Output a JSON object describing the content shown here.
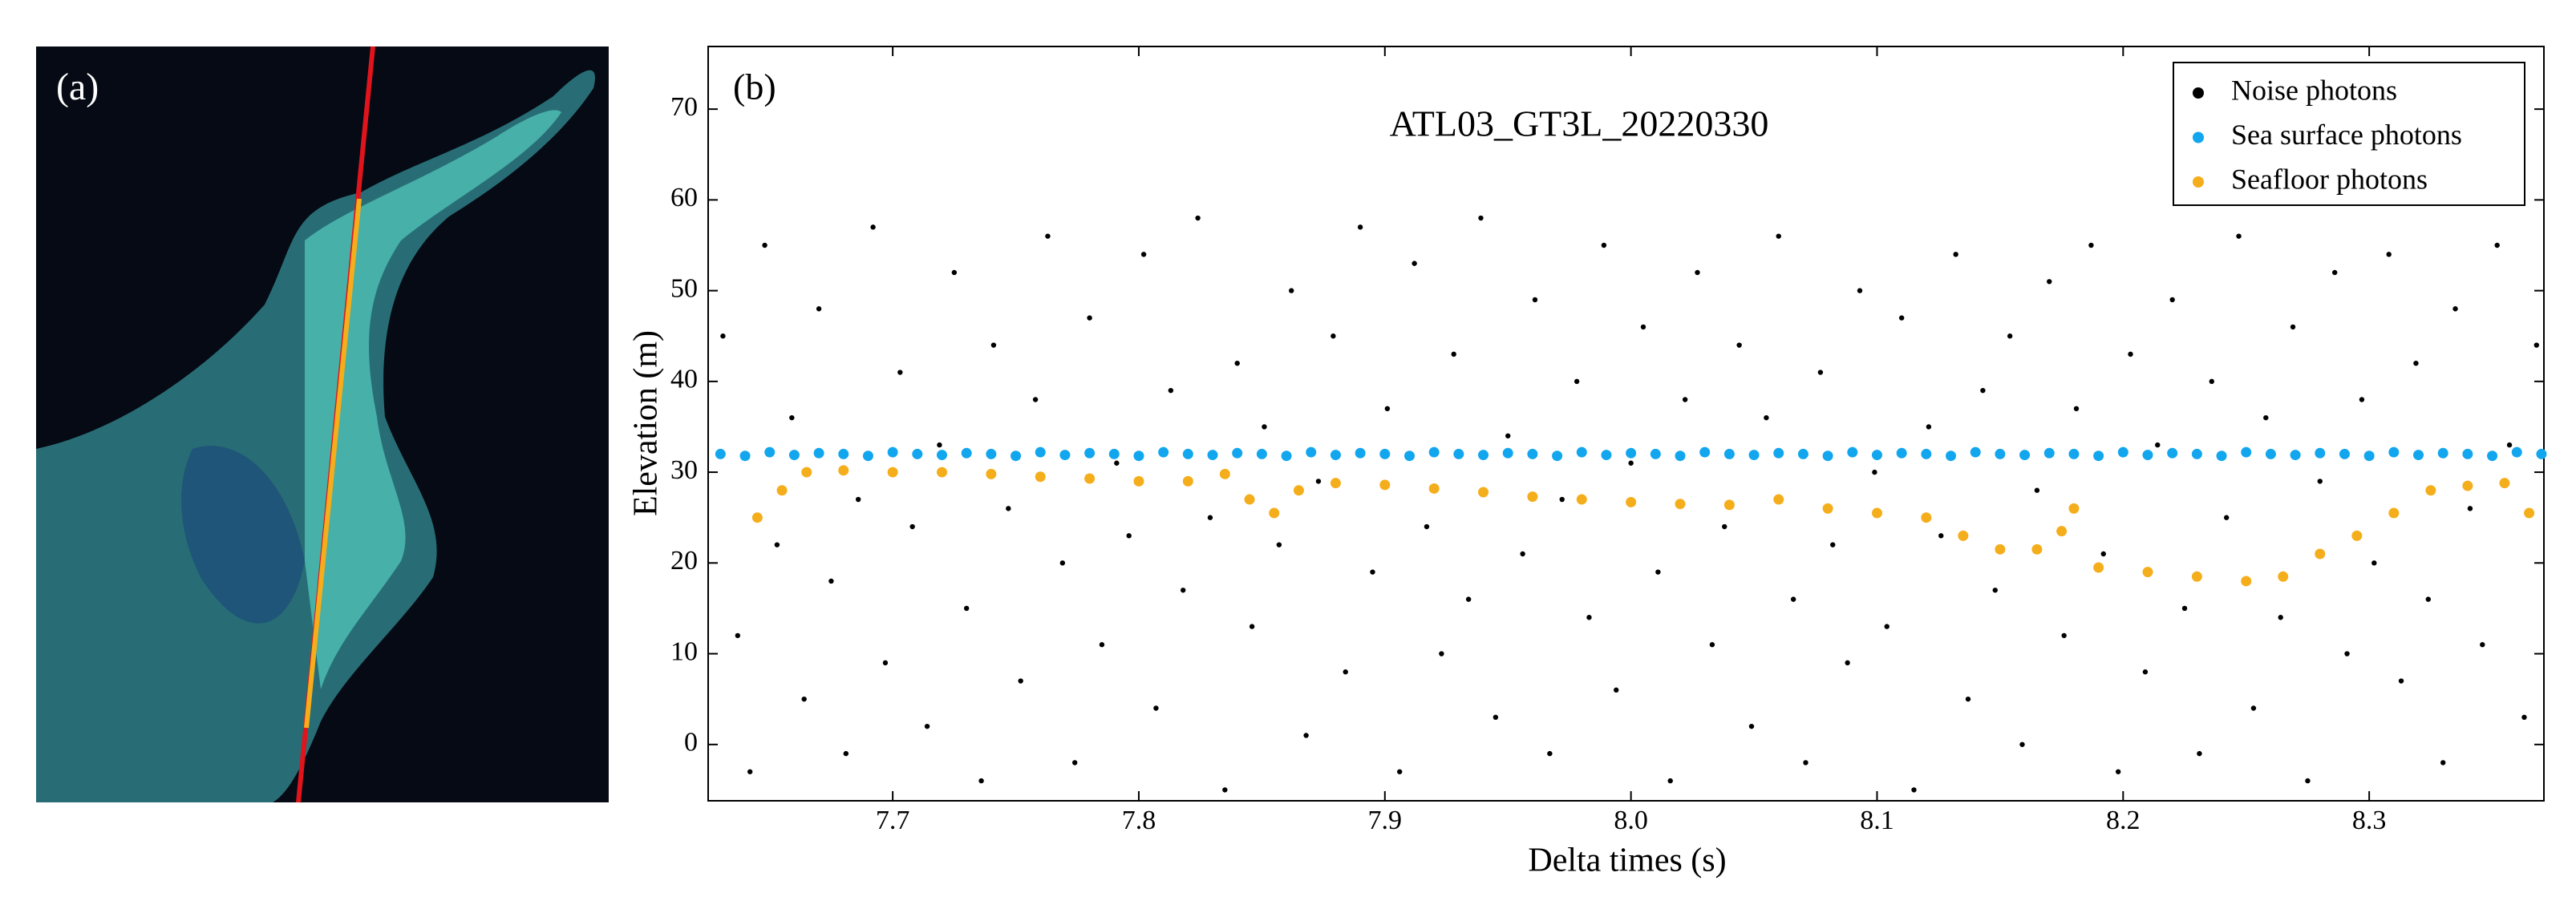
{
  "panel_a": {
    "label": "(a)"
  },
  "chart_data": {
    "type": "scatter",
    "panel_label": "(b)",
    "title": "ATL03_GT3L_20220330",
    "x_label": "Delta times (s)",
    "y_label": "Elevation (m)",
    "xlim": [
      7.625,
      8.371
    ],
    "ylim": [
      -6.2,
      76.9
    ],
    "xticks": [
      7.7,
      7.8,
      7.9,
      {
        "value": 8,
        "label": "8.0"
      },
      8.1,
      8.2,
      8.3
    ],
    "yticks": [
      0,
      10,
      20,
      30,
      40,
      50,
      60,
      70
    ],
    "legend": "upper right",
    "series": [
      {
        "name": "Noise photons",
        "color": "#000000",
        "x": [
          7.631,
          7.637,
          7.642,
          7.648,
          7.653,
          7.659,
          7.664,
          7.67,
          7.675,
          7.681,
          7.686,
          7.692,
          7.697,
          7.703,
          7.708,
          7.714,
          7.719,
          7.725,
          7.73,
          7.736,
          7.741,
          7.747,
          7.752,
          7.758,
          7.763,
          7.769,
          7.774,
          7.78,
          7.785,
          7.791,
          7.796,
          7.802,
          7.807,
          7.813,
          7.818,
          7.824,
          7.829,
          7.835,
          7.84,
          7.846,
          7.851,
          7.857,
          7.862,
          7.868,
          7.873,
          7.879,
          7.884,
          7.89,
          7.895,
          7.901,
          7.906,
          7.912,
          7.917,
          7.923,
          7.928,
          7.934,
          7.939,
          7.945,
          7.95,
          7.956,
          7.961,
          7.967,
          7.972,
          7.978,
          7.983,
          7.989,
          7.994,
          8.0,
          8.005,
          8.011,
          8.016,
          8.022,
          8.027,
          8.033,
          8.038,
          8.044,
          8.049,
          8.055,
          8.06,
          8.066,
          8.071,
          8.077,
          8.082,
          8.088,
          8.093,
          8.099,
          8.104,
          8.11,
          8.115,
          8.121,
          8.126,
          8.132,
          8.137,
          8.143,
          8.148,
          8.154,
          8.159,
          8.165,
          8.17,
          8.176,
          8.181,
          8.187,
          8.192,
          8.198,
          8.203,
          8.209,
          8.214,
          8.22,
          8.225,
          8.231,
          8.236,
          8.242,
          8.247,
          8.253,
          8.258,
          8.264,
          8.269,
          8.275,
          8.28,
          8.286,
          8.291,
          8.297,
          8.302,
          8.308,
          8.313,
          8.319,
          8.324,
          8.33,
          8.335,
          8.341,
          8.346,
          8.352,
          8.357,
          8.363,
          8.368
        ],
        "values": [
          45,
          12,
          -3,
          55,
          22,
          36,
          5,
          48,
          18,
          -1,
          27,
          57,
          9,
          41,
          24,
          2,
          33,
          52,
          15,
          -4,
          44,
          26,
          7,
          38,
          56,
          20,
          -2,
          47,
          11,
          31,
          23,
          54,
          4,
          39,
          17,
          58,
          25,
          -5,
          42,
          13,
          35,
          22,
          50,
          1,
          29,
          45,
          8,
          57,
          19,
          37,
          -3,
          53,
          24,
          10,
          43,
          16,
          58,
          3,
          34,
          21,
          49,
          -1,
          27,
          40,
          14,
          55,
          6,
          31,
          46,
          19,
          -4,
          38,
          52,
          11,
          24,
          44,
          2,
          36,
          56,
          16,
          -2,
          41,
          22,
          9,
          50,
          30,
          13,
          47,
          -5,
          35,
          23,
          54,
          5,
          39,
          17,
          45,
          0,
          28,
          51,
          12,
          37,
          55,
          21,
          -3,
          43,
          8,
          33,
          49,
          15,
          -1,
          40,
          25,
          56,
          4,
          36,
          14,
          46,
          -4,
          29,
          52,
          10,
          38,
          20,
          54,
          7,
          42,
          16,
          -2,
          48,
          26,
          11,
          55,
          33,
          3,
          44
        ]
      },
      {
        "name": "Sea surface photons",
        "color": "#12a6ee",
        "x": [
          7.63,
          7.64,
          7.65,
          7.66,
          7.67,
          7.68,
          7.69,
          7.7,
          7.71,
          7.72,
          7.73,
          7.74,
          7.75,
          7.76,
          7.77,
          7.78,
          7.79,
          7.8,
          7.81,
          7.82,
          7.83,
          7.84,
          7.85,
          7.86,
          7.87,
          7.88,
          7.89,
          7.9,
          7.91,
          7.92,
          7.93,
          7.94,
          7.95,
          7.96,
          7.97,
          7.98,
          7.99,
          8.0,
          8.01,
          8.02,
          8.03,
          8.04,
          8.05,
          8.06,
          8.07,
          8.08,
          8.09,
          8.1,
          8.11,
          8.12,
          8.13,
          8.14,
          8.15,
          8.16,
          8.17,
          8.18,
          8.19,
          8.2,
          8.21,
          8.22,
          8.23,
          8.24,
          8.25,
          8.26,
          8.27,
          8.28,
          8.29,
          8.3,
          8.31,
          8.32,
          8.33,
          8.34,
          8.35,
          8.36,
          8.37
        ],
        "values": [
          32,
          31.8,
          32.2,
          31.9,
          32.1,
          32,
          31.8,
          32.2,
          32,
          31.9,
          32.1,
          32,
          31.8,
          32.2,
          31.9,
          32.1,
          32,
          31.8,
          32.2,
          32,
          31.9,
          32.1,
          32,
          31.8,
          32.2,
          31.9,
          32.1,
          32,
          31.8,
          32.2,
          32,
          31.9,
          32.1,
          32,
          31.8,
          32.2,
          31.9,
          32.1,
          32,
          31.8,
          32.2,
          32,
          31.9,
          32.1,
          32,
          31.8,
          32.2,
          31.9,
          32.1,
          32,
          31.8,
          32.2,
          32,
          31.9,
          32.1,
          32,
          31.8,
          32.2,
          31.9,
          32.1,
          32,
          31.8,
          32.2,
          32,
          31.9,
          32.1,
          32,
          31.8,
          32.2,
          31.9,
          32.1,
          32,
          31.8,
          32.2,
          32
        ]
      },
      {
        "name": "Seafloor photons",
        "color": "#f5ae1b",
        "x": [
          7.645,
          7.655,
          7.665,
          7.68,
          7.7,
          7.72,
          7.74,
          7.76,
          7.78,
          7.8,
          7.82,
          7.835,
          7.845,
          7.855,
          7.865,
          7.88,
          7.9,
          7.92,
          7.94,
          7.96,
          7.98,
          8.0,
          8.02,
          8.04,
          8.06,
          8.08,
          8.1,
          8.12,
          8.135,
          8.15,
          8.165,
          8.175,
          8.18,
          8.19,
          8.21,
          8.23,
          8.25,
          8.265,
          8.28,
          8.295,
          8.31,
          8.325,
          8.34,
          8.355,
          8.365
        ],
        "values": [
          25,
          28,
          30,
          30.2,
          30,
          30,
          29.8,
          29.5,
          29.3,
          29,
          29,
          29.8,
          27,
          25.5,
          28,
          28.8,
          28.6,
          28.2,
          27.8,
          27.3,
          27,
          26.7,
          26.5,
          26.4,
          27,
          26,
          25.5,
          25,
          23,
          21.5,
          21.5,
          23.5,
          26,
          19.5,
          19,
          18.5,
          18,
          18.5,
          21,
          23,
          25.5,
          28,
          28.5,
          28.8,
          25.5
        ]
      }
    ]
  }
}
